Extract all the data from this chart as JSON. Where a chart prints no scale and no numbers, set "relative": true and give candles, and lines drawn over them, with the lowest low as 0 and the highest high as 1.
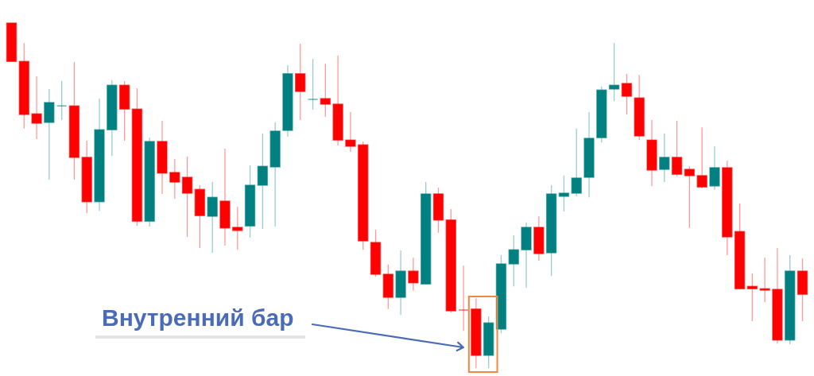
{
  "chart_data": {
    "type": "candlestick",
    "relative": true,
    "tick_labels": false,
    "categories": [
      null,
      null,
      null,
      null,
      null,
      null,
      null,
      null,
      null,
      null,
      null,
      null,
      null,
      null,
      null,
      null,
      null,
      null,
      null,
      null,
      null,
      null,
      null,
      null,
      null,
      null,
      null,
      null,
      null,
      null,
      null,
      null,
      null,
      null,
      null,
      null,
      null,
      null,
      null,
      null,
      null,
      null,
      null,
      null,
      null,
      null,
      null,
      null,
      null,
      null,
      null,
      null,
      null,
      null,
      null,
      null,
      null,
      null,
      null,
      null,
      null,
      null,
      null,
      null
    ],
    "ohlc": [
      [
        1.0,
        1.0,
        0.889,
        0.889
      ],
      [
        0.889,
        0.942,
        0.694,
        0.735
      ],
      [
        0.737,
        0.846,
        0.664,
        0.71
      ],
      [
        0.712,
        0.809,
        0.546,
        0.77
      ],
      [
        0.76,
        0.832,
        0.719,
        0.76
      ],
      [
        0.76,
        0.887,
        0.546,
        0.611
      ],
      [
        0.611,
        0.659,
        0.449,
        0.482
      ],
      [
        0.482,
        0.781,
        0.456,
        0.691
      ],
      [
        0.691,
        0.834,
        0.615,
        0.82
      ],
      [
        0.82,
        0.832,
        0.659,
        0.751
      ],
      [
        0.751,
        0.811,
        0.412,
        0.426
      ],
      [
        0.426,
        0.668,
        0.41,
        0.657
      ],
      [
        0.657,
        0.717,
        0.505,
        0.565
      ],
      [
        0.567,
        0.606,
        0.491,
        0.539
      ],
      [
        0.553,
        0.613,
        0.38,
        0.507
      ],
      [
        0.518,
        0.53,
        0.348,
        0.442
      ],
      [
        0.44,
        0.539,
        0.334,
        0.495
      ],
      [
        0.484,
        0.636,
        0.355,
        0.406
      ],
      [
        0.408,
        0.468,
        0.343,
        0.399
      ],
      [
        0.412,
        0.588,
        0.378,
        0.53
      ],
      [
        0.53,
        0.68,
        0.403,
        0.585
      ],
      [
        0.583,
        0.712,
        0.41,
        0.687
      ],
      [
        0.689,
        0.878,
        0.671,
        0.853
      ],
      [
        0.853,
        0.94,
        0.719,
        0.802
      ],
      [
        0.779,
        0.896,
        0.749,
        0.779
      ],
      [
        0.781,
        0.882,
        0.728,
        0.765
      ],
      [
        0.765,
        0.906,
        0.645,
        0.661
      ],
      [
        0.661,
        0.742,
        0.627,
        0.643
      ],
      [
        0.647,
        0.657,
        0.343,
        0.369
      ],
      [
        0.364,
        0.401,
        0.265,
        0.272
      ],
      [
        0.272,
        0.3,
        0.171,
        0.205
      ],
      [
        0.205,
        0.341,
        0.154,
        0.281
      ],
      [
        0.281,
        0.32,
        0.224,
        0.247
      ],
      [
        0.244,
        0.539,
        0.242,
        0.505
      ],
      [
        0.505,
        0.523,
        0.392,
        0.429
      ],
      [
        0.429,
        0.461,
        0.161,
        0.166
      ],
      [
        0.168,
        0.297,
        0.108,
        0.168
      ],
      [
        0.171,
        0.203,
        0.0,
        0.037
      ],
      [
        0.037,
        0.15,
        0.0,
        0.131
      ],
      [
        0.113,
        0.327,
        0.101,
        0.302
      ],
      [
        0.302,
        0.385,
        0.237,
        0.343
      ],
      [
        0.343,
        0.422,
        0.233,
        0.408
      ],
      [
        0.408,
        0.44,
        0.311,
        0.332
      ],
      [
        0.334,
        0.53,
        0.267,
        0.505
      ],
      [
        0.498,
        0.558,
        0.454,
        0.507
      ],
      [
        0.507,
        0.694,
        0.498,
        0.551
      ],
      [
        0.553,
        0.742,
        0.495,
        0.666
      ],
      [
        0.668,
        0.816,
        0.654,
        0.806
      ],
      [
        0.809,
        0.942,
        0.774,
        0.82
      ],
      [
        0.825,
        0.853,
        0.735,
        0.788
      ],
      [
        0.783,
        0.85,
        0.661,
        0.673
      ],
      [
        0.661,
        0.719,
        0.528,
        0.574
      ],
      [
        0.576,
        0.68,
        0.539,
        0.611
      ],
      [
        0.611,
        0.717,
        0.555,
        0.562
      ],
      [
        0.576,
        0.585,
        0.406,
        0.558
      ],
      [
        0.558,
        0.698,
        0.521,
        0.525
      ],
      [
        0.528,
        0.643,
        0.516,
        0.581
      ],
      [
        0.581,
        0.601,
        0.327,
        0.38
      ],
      [
        0.396,
        0.477,
        0.228,
        0.23
      ],
      [
        0.237,
        0.274,
        0.136,
        0.23
      ],
      [
        0.23,
        0.32,
        0.191,
        0.226
      ],
      [
        0.228,
        0.348,
        0.071,
        0.081
      ],
      [
        0.081,
        0.327,
        0.069,
        0.281
      ],
      [
        0.281,
        0.318,
        0.136,
        0.214
      ]
    ],
    "colors": [
      "#ff0000",
      "#ff0000",
      "#ff0000",
      "#008080",
      "#008080",
      "#ff0000",
      "#ff0000",
      "#008080",
      "#008080",
      "#ff0000",
      "#ff0000",
      "#008080",
      "#ff0000",
      "#ff0000",
      "#ff0000",
      "#ff0000",
      "#008080",
      "#ff0000",
      "#ff0000",
      "#008080",
      "#008080",
      "#008080",
      "#008080",
      "#ff0000",
      "#008080",
      "#ff0000",
      "#ff0000",
      "#ff0000",
      "#ff0000",
      "#ff0000",
      "#ff0000",
      "#008080",
      "#ff0000",
      "#008080",
      "#ff0000",
      "#ff0000",
      "#ff0000",
      "#ff0000",
      "#008080",
      "#008080",
      "#008080",
      "#008080",
      "#ff0000",
      "#008080",
      "#008080",
      "#008080",
      "#008080",
      "#008080",
      "#008080",
      "#ff0000",
      "#ff0000",
      "#ff0000",
      "#008080",
      "#ff0000",
      "#ff0000",
      "#ff0000",
      "#008080",
      "#ff0000",
      "#ff0000",
      "#ff0000",
      "#ff0000",
      "#ff0000",
      "#008080",
      "#ff0000"
    ],
    "annotations": [
      "Внутренний бар"
    ]
  }
}
